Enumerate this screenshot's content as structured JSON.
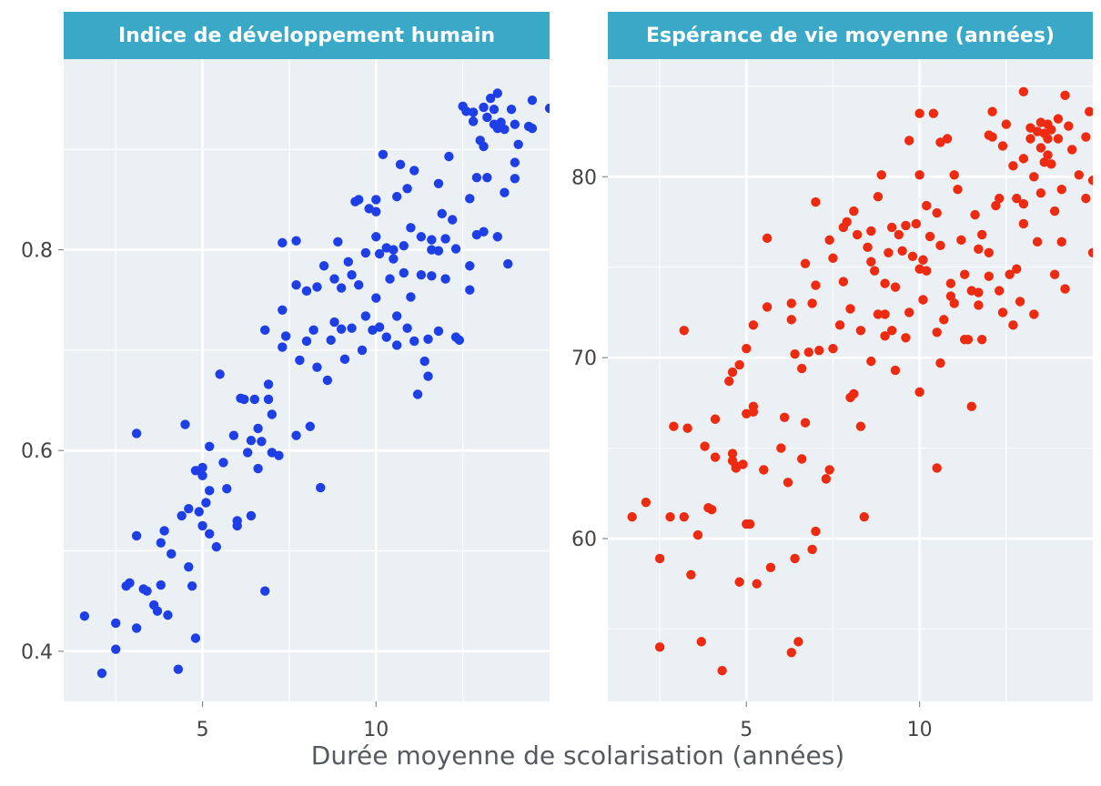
{
  "x_axis_title": "Durée moyenne de scolarisation (années)",
  "chart_data": [
    {
      "type": "scatter",
      "title": "Indice de développement humain",
      "xlabel": "Durée moyenne de scolarisation (années)",
      "ylabel": "",
      "xlim": [
        1.0,
        15.0
      ],
      "ylim": [
        0.35,
        0.99
      ],
      "xticks": [
        5,
        10
      ],
      "yticks": [
        0.4,
        0.6,
        0.8
      ],
      "ytick_labels": [
        "0.4",
        "0.6",
        "0.8"
      ],
      "grid": true,
      "color": "#1f3fe6",
      "points": [
        [
          1.6,
          0.435
        ],
        [
          2.1,
          0.378
        ],
        [
          2.5,
          0.402
        ],
        [
          2.5,
          0.428
        ],
        [
          2.8,
          0.465
        ],
        [
          2.9,
          0.468
        ],
        [
          3.1,
          0.423
        ],
        [
          3.1,
          0.515
        ],
        [
          3.1,
          0.617
        ],
        [
          3.3,
          0.462
        ],
        [
          3.4,
          0.46
        ],
        [
          3.6,
          0.446
        ],
        [
          3.7,
          0.44
        ],
        [
          3.8,
          0.508
        ],
        [
          3.8,
          0.466
        ],
        [
          3.9,
          0.52
        ],
        [
          4.0,
          0.436
        ],
        [
          4.1,
          0.497
        ],
        [
          4.3,
          0.382
        ],
        [
          4.4,
          0.535
        ],
        [
          4.5,
          0.626
        ],
        [
          4.6,
          0.542
        ],
        [
          4.6,
          0.484
        ],
        [
          4.7,
          0.465
        ],
        [
          4.8,
          0.58
        ],
        [
          4.8,
          0.413
        ],
        [
          4.9,
          0.539
        ],
        [
          5.0,
          0.583
        ],
        [
          5.0,
          0.575
        ],
        [
          5.0,
          0.525
        ],
        [
          5.1,
          0.548
        ],
        [
          5.2,
          0.604
        ],
        [
          5.2,
          0.56
        ],
        [
          5.2,
          0.517
        ],
        [
          5.4,
          0.504
        ],
        [
          5.5,
          0.676
        ],
        [
          5.6,
          0.588
        ],
        [
          5.7,
          0.562
        ],
        [
          5.9,
          0.615
        ],
        [
          6.0,
          0.53
        ],
        [
          6.0,
          0.525
        ],
        [
          6.1,
          0.652
        ],
        [
          6.2,
          0.651
        ],
        [
          6.3,
          0.598
        ],
        [
          6.4,
          0.535
        ],
        [
          6.4,
          0.61
        ],
        [
          6.5,
          0.651
        ],
        [
          6.6,
          0.622
        ],
        [
          6.6,
          0.582
        ],
        [
          6.7,
          0.609
        ],
        [
          6.8,
          0.46
        ],
        [
          6.8,
          0.72
        ],
        [
          6.9,
          0.651
        ],
        [
          6.9,
          0.666
        ],
        [
          7.0,
          0.598
        ],
        [
          7.0,
          0.636
        ],
        [
          7.2,
          0.595
        ],
        [
          7.3,
          0.74
        ],
        [
          7.3,
          0.807
        ],
        [
          7.3,
          0.703
        ],
        [
          7.4,
          0.714
        ],
        [
          7.7,
          0.809
        ],
        [
          7.7,
          0.765
        ],
        [
          7.7,
          0.615
        ],
        [
          7.8,
          0.69
        ],
        [
          8.0,
          0.759
        ],
        [
          8.0,
          0.709
        ],
        [
          8.1,
          0.624
        ],
        [
          8.2,
          0.72
        ],
        [
          8.3,
          0.763
        ],
        [
          8.3,
          0.683
        ],
        [
          8.4,
          0.563
        ],
        [
          8.5,
          0.784
        ],
        [
          8.6,
          0.67
        ],
        [
          8.7,
          0.71
        ],
        [
          8.8,
          0.771
        ],
        [
          8.8,
          0.728
        ],
        [
          8.9,
          0.808
        ],
        [
          9.0,
          0.762
        ],
        [
          9.0,
          0.721
        ],
        [
          9.1,
          0.691
        ],
        [
          9.2,
          0.788
        ],
        [
          9.3,
          0.775
        ],
        [
          9.3,
          0.722
        ],
        [
          9.4,
          0.848
        ],
        [
          9.5,
          0.85
        ],
        [
          9.5,
          0.765
        ],
        [
          9.6,
          0.7
        ],
        [
          9.7,
          0.797
        ],
        [
          9.7,
          0.734
        ],
        [
          9.8,
          0.841
        ],
        [
          9.9,
          0.72
        ],
        [
          10.0,
          0.85
        ],
        [
          10.0,
          0.838
        ],
        [
          10.0,
          0.813
        ],
        [
          10.0,
          0.752
        ],
        [
          10.1,
          0.796
        ],
        [
          10.1,
          0.723
        ],
        [
          10.2,
          0.895
        ],
        [
          10.3,
          0.802
        ],
        [
          10.3,
          0.713
        ],
        [
          10.4,
          0.771
        ],
        [
          10.5,
          0.8
        ],
        [
          10.5,
          0.791
        ],
        [
          10.6,
          0.853
        ],
        [
          10.6,
          0.734
        ],
        [
          10.6,
          0.705
        ],
        [
          10.7,
          0.885
        ],
        [
          10.8,
          0.804
        ],
        [
          10.8,
          0.777
        ],
        [
          10.9,
          0.722
        ],
        [
          10.9,
          0.861
        ],
        [
          11.0,
          0.822
        ],
        [
          11.0,
          0.753
        ],
        [
          11.1,
          0.879
        ],
        [
          11.1,
          0.709
        ],
        [
          11.2,
          0.656
        ],
        [
          11.3,
          0.813
        ],
        [
          11.3,
          0.775
        ],
        [
          11.4,
          0.689
        ],
        [
          11.5,
          0.711
        ],
        [
          11.5,
          0.674
        ],
        [
          11.6,
          0.81
        ],
        [
          11.6,
          0.8
        ],
        [
          11.6,
          0.774
        ],
        [
          11.8,
          0.866
        ],
        [
          11.8,
          0.799
        ],
        [
          11.8,
          0.719
        ],
        [
          11.9,
          0.836
        ],
        [
          12.0,
          0.811
        ],
        [
          12.0,
          0.771
        ],
        [
          12.1,
          0.893
        ],
        [
          12.2,
          0.83
        ],
        [
          12.3,
          0.713
        ],
        [
          12.3,
          0.801
        ],
        [
          12.4,
          0.71
        ],
        [
          12.5,
          0.943
        ],
        [
          12.6,
          0.938
        ],
        [
          12.7,
          0.851
        ],
        [
          12.7,
          0.784
        ],
        [
          12.7,
          0.76
        ],
        [
          12.8,
          0.928
        ],
        [
          12.8,
          0.937
        ],
        [
          12.9,
          0.872
        ],
        [
          12.9,
          0.815
        ],
        [
          13.0,
          0.909
        ],
        [
          13.1,
          0.942
        ],
        [
          13.1,
          0.903
        ],
        [
          13.1,
          0.818
        ],
        [
          13.2,
          0.932
        ],
        [
          13.2,
          0.872
        ],
        [
          13.3,
          0.951
        ],
        [
          13.4,
          0.94
        ],
        [
          13.4,
          0.925
        ],
        [
          13.5,
          0.956
        ],
        [
          13.5,
          0.921
        ],
        [
          13.5,
          0.813
        ],
        [
          13.6,
          0.927
        ],
        [
          13.7,
          0.92
        ],
        [
          13.7,
          0.857
        ],
        [
          13.8,
          0.786
        ],
        [
          13.9,
          0.94
        ],
        [
          14.0,
          0.925
        ],
        [
          14.0,
          0.871
        ],
        [
          14.0,
          0.887
        ],
        [
          14.1,
          0.905
        ],
        [
          14.4,
          0.923
        ],
        [
          14.5,
          0.949
        ],
        [
          14.5,
          0.921
        ],
        [
          15.0,
          0.941
        ]
      ]
    },
    {
      "type": "scatter",
      "title": "Espérance de vie moyenne (années)",
      "xlabel": "Durée moyenne de scolarisation (années)",
      "ylabel": "",
      "xlim": [
        1.0,
        15.0
      ],
      "ylim": [
        51.0,
        86.5
      ],
      "xticks": [
        5,
        10
      ],
      "yticks": [
        60,
        70,
        80
      ],
      "ytick_labels": [
        "60",
        "70",
        "80"
      ],
      "grid": true,
      "color": "#ee2a10",
      "points": [
        [
          1.7,
          61.2
        ],
        [
          2.1,
          62.0
        ],
        [
          2.5,
          58.9
        ],
        [
          2.5,
          54.0
        ],
        [
          2.8,
          61.2
        ],
        [
          2.9,
          66.2
        ],
        [
          3.2,
          71.5
        ],
        [
          3.2,
          61.2
        ],
        [
          3.3,
          66.1
        ],
        [
          3.4,
          58.0
        ],
        [
          3.6,
          60.2
        ],
        [
          3.7,
          54.3
        ],
        [
          3.8,
          65.1
        ],
        [
          3.9,
          61.7
        ],
        [
          4.0,
          61.6
        ],
        [
          4.1,
          64.5
        ],
        [
          4.1,
          66.6
        ],
        [
          4.3,
          52.7
        ],
        [
          4.5,
          68.7
        ],
        [
          4.6,
          69.2
        ],
        [
          4.6,
          64.3
        ],
        [
          4.6,
          64.7
        ],
        [
          4.7,
          63.9
        ],
        [
          4.7,
          64.0
        ],
        [
          4.8,
          69.6
        ],
        [
          4.8,
          57.6
        ],
        [
          4.9,
          64.1
        ],
        [
          5.0,
          70.5
        ],
        [
          5.0,
          66.9
        ],
        [
          5.0,
          60.8
        ],
        [
          5.1,
          60.8
        ],
        [
          5.2,
          71.8
        ],
        [
          5.2,
          67.3
        ],
        [
          5.2,
          67.0
        ],
        [
          5.3,
          57.5
        ],
        [
          5.5,
          63.8
        ],
        [
          5.6,
          76.6
        ],
        [
          5.6,
          72.8
        ],
        [
          5.7,
          58.4
        ],
        [
          6.0,
          65.0
        ],
        [
          6.1,
          66.7
        ],
        [
          6.2,
          63.1
        ],
        [
          6.3,
          73.0
        ],
        [
          6.3,
          72.1
        ],
        [
          6.3,
          53.7
        ],
        [
          6.4,
          70.2
        ],
        [
          6.4,
          58.9
        ],
        [
          6.5,
          54.3
        ],
        [
          6.6,
          69.4
        ],
        [
          6.6,
          64.4
        ],
        [
          6.7,
          75.2
        ],
        [
          6.7,
          66.4
        ],
        [
          6.8,
          70.3
        ],
        [
          6.9,
          73.0
        ],
        [
          6.9,
          59.4
        ],
        [
          7.0,
          78.6
        ],
        [
          7.0,
          74.0
        ],
        [
          7.0,
          60.4
        ],
        [
          7.1,
          70.4
        ],
        [
          7.3,
          63.3
        ],
        [
          7.4,
          76.5
        ],
        [
          7.4,
          63.8
        ],
        [
          7.5,
          70.5
        ],
        [
          7.5,
          75.5
        ],
        [
          7.7,
          71.8
        ],
        [
          7.8,
          77.2
        ],
        [
          7.8,
          74.2
        ],
        [
          7.9,
          77.5
        ],
        [
          8.0,
          67.8
        ],
        [
          8.0,
          72.7
        ],
        [
          8.1,
          78.1
        ],
        [
          8.1,
          68.0
        ],
        [
          8.2,
          76.8
        ],
        [
          8.3,
          71.5
        ],
        [
          8.3,
          66.2
        ],
        [
          8.4,
          61.2
        ],
        [
          8.5,
          76.1
        ],
        [
          8.6,
          75.3
        ],
        [
          8.6,
          77.0
        ],
        [
          8.6,
          69.8
        ],
        [
          8.7,
          74.8
        ],
        [
          8.8,
          72.4
        ],
        [
          8.8,
          78.9
        ],
        [
          8.9,
          80.1
        ],
        [
          9.0,
          72.4
        ],
        [
          9.0,
          74.1
        ],
        [
          9.0,
          71.2
        ],
        [
          9.1,
          75.8
        ],
        [
          9.2,
          77.2
        ],
        [
          9.2,
          71.5
        ],
        [
          9.3,
          73.9
        ],
        [
          9.3,
          69.3
        ],
        [
          9.4,
          76.8
        ],
        [
          9.5,
          75.9
        ],
        [
          9.6,
          77.3
        ],
        [
          9.6,
          71.1
        ],
        [
          9.7,
          82.0
        ],
        [
          9.7,
          72.5
        ],
        [
          9.8,
          75.6
        ],
        [
          9.9,
          77.4
        ],
        [
          10.0,
          83.5
        ],
        [
          10.0,
          80.1
        ],
        [
          10.0,
          74.9
        ],
        [
          10.0,
          68.1
        ],
        [
          10.1,
          75.4
        ],
        [
          10.1,
          73.2
        ],
        [
          10.2,
          74.8
        ],
        [
          10.2,
          78.4
        ],
        [
          10.3,
          76.7
        ],
        [
          10.4,
          83.5
        ],
        [
          10.5,
          78.0
        ],
        [
          10.5,
          71.4
        ],
        [
          10.5,
          63.9
        ],
        [
          10.6,
          81.9
        ],
        [
          10.6,
          76.2
        ],
        [
          10.6,
          69.7
        ],
        [
          10.7,
          72.1
        ],
        [
          10.8,
          82.1
        ],
        [
          10.9,
          74.1
        ],
        [
          10.9,
          73.4
        ],
        [
          11.0,
          80.1
        ],
        [
          11.0,
          73.0
        ],
        [
          11.1,
          79.3
        ],
        [
          11.2,
          76.5
        ],
        [
          11.3,
          71.0
        ],
        [
          11.3,
          74.6
        ],
        [
          11.4,
          71.0
        ],
        [
          11.5,
          73.7
        ],
        [
          11.5,
          67.3
        ],
        [
          11.6,
          77.9
        ],
        [
          11.7,
          76.0
        ],
        [
          11.7,
          73.6
        ],
        [
          11.7,
          72.9
        ],
        [
          11.8,
          76.8
        ],
        [
          11.8,
          71.0
        ],
        [
          12.0,
          82.3
        ],
        [
          12.0,
          75.8
        ],
        [
          12.0,
          74.5
        ],
        [
          12.1,
          83.6
        ],
        [
          12.1,
          82.2
        ],
        [
          12.2,
          78.4
        ],
        [
          12.3,
          78.8
        ],
        [
          12.3,
          73.7
        ],
        [
          12.4,
          81.7
        ],
        [
          12.4,
          72.5
        ],
        [
          12.5,
          82.9
        ],
        [
          12.6,
          74.6
        ],
        [
          12.7,
          80.6
        ],
        [
          12.7,
          71.8
        ],
        [
          12.8,
          78.8
        ],
        [
          12.8,
          74.9
        ],
        [
          12.9,
          73.1
        ],
        [
          13.0,
          84.7
        ],
        [
          13.0,
          81.0
        ],
        [
          13.0,
          78.5
        ],
        [
          13.0,
          77.4
        ],
        [
          13.2,
          82.7
        ],
        [
          13.2,
          82.1
        ],
        [
          13.3,
          80.0
        ],
        [
          13.3,
          72.4
        ],
        [
          13.4,
          82.5
        ],
        [
          13.4,
          76.4
        ],
        [
          13.5,
          83.0
        ],
        [
          13.5,
          81.6
        ],
        [
          13.5,
          79.1
        ],
        [
          13.6,
          82.4
        ],
        [
          13.6,
          80.8
        ],
        [
          13.7,
          82.1
        ],
        [
          13.7,
          82.9
        ],
        [
          13.7,
          81.2
        ],
        [
          13.8,
          82.6
        ],
        [
          13.8,
          80.7
        ],
        [
          13.9,
          78.1
        ],
        [
          13.9,
          74.6
        ],
        [
          14.0,
          83.2
        ],
        [
          14.0,
          82.1
        ],
        [
          14.1,
          79.3
        ],
        [
          14.1,
          76.4
        ],
        [
          14.2,
          84.5
        ],
        [
          14.2,
          73.8
        ],
        [
          14.3,
          82.8
        ],
        [
          14.4,
          81.5
        ],
        [
          14.6,
          80.1
        ],
        [
          14.8,
          82.2
        ],
        [
          14.8,
          78.8
        ],
        [
          14.9,
          83.6
        ],
        [
          15.0,
          75.8
        ],
        [
          15.0,
          79.8
        ],
        [
          15.2,
          81.2
        ]
      ]
    }
  ]
}
